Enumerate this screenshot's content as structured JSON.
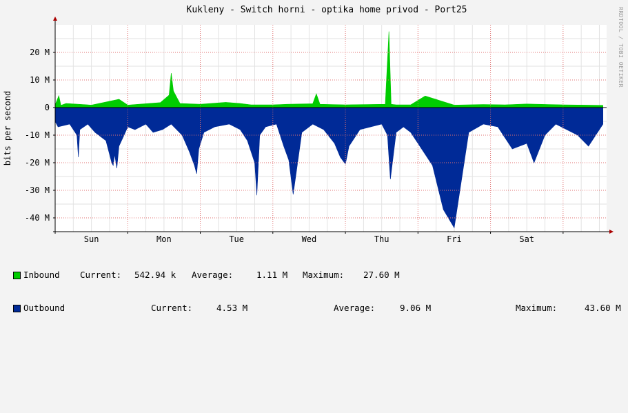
{
  "chart_data": {
    "type": "area",
    "title": "Kukleny - Switch horni - optika home privod - Port25",
    "ylabel": "bits per second",
    "y_unit": "bits per second",
    "ylim": [
      -45000000,
      30000000
    ],
    "yticks": [
      {
        "value": 20000000,
        "label": "20 M"
      },
      {
        "value": 10000000,
        "label": "10 M"
      },
      {
        "value": 0,
        "label": "0"
      },
      {
        "value": -10000000,
        "label": "-10 M"
      },
      {
        "value": -20000000,
        "label": "-20 M"
      },
      {
        "value": -30000000,
        "label": "-30 M"
      },
      {
        "value": -40000000,
        "label": "-40 M"
      }
    ],
    "xlim": [
      0,
      7.6
    ],
    "xticks": [
      {
        "value": 0.5,
        "label": "Sun"
      },
      {
        "value": 1.5,
        "label": "Mon"
      },
      {
        "value": 2.5,
        "label": "Tue"
      },
      {
        "value": 3.5,
        "label": "Wed"
      },
      {
        "value": 4.5,
        "label": "Thu"
      },
      {
        "value": 5.5,
        "label": "Fri"
      },
      {
        "value": 6.5,
        "label": "Sat"
      }
    ],
    "day_boundaries": [
      0,
      1,
      2,
      3,
      4,
      5,
      6,
      7
    ],
    "grid": true,
    "watermark": "RRDTOOL / TOBI OETIKER",
    "series": [
      {
        "name": "Inbound",
        "color": "#00cc00",
        "direction": "positive",
        "x": [
          0,
          0.05,
          0.08,
          0.15,
          0.5,
          0.88,
          1.0,
          1.2,
          1.45,
          1.57,
          1.6,
          1.63,
          1.67,
          1.72,
          2.0,
          2.35,
          2.55,
          2.7,
          3.0,
          3.2,
          3.55,
          3.6,
          3.65,
          4.0,
          4.3,
          4.55,
          4.6,
          4.63,
          4.7,
          4.9,
          5.1,
          5.5,
          5.9,
          6.2,
          6.5,
          6.8,
          7.0,
          7.3,
          7.55
        ],
        "values": [
          1000000,
          4300000,
          800000,
          1500000,
          900000,
          3000000,
          900000,
          1300000,
          1800000,
          4500000,
          12500000,
          6000000,
          4000000,
          1500000,
          1200000,
          1900000,
          1500000,
          1000000,
          1000000,
          1200000,
          1400000,
          5000000,
          1200000,
          1000000,
          1100000,
          1200000,
          27600000,
          1200000,
          1000000,
          1000000,
          4200000,
          900000,
          1100000,
          1000000,
          1300000,
          1100000,
          1000000,
          900000,
          800000
        ]
      },
      {
        "name": "Outbound",
        "color": "#002a97",
        "direction": "negative",
        "x": [
          0,
          0.04,
          0.2,
          0.3,
          0.32,
          0.34,
          0.45,
          0.55,
          0.7,
          0.78,
          0.8,
          0.82,
          0.85,
          0.88,
          0.95,
          1.0,
          1.1,
          1.25,
          1.35,
          1.48,
          1.6,
          1.75,
          1.85,
          1.92,
          1.95,
          1.98,
          2.05,
          2.2,
          2.4,
          2.55,
          2.65,
          2.75,
          2.78,
          2.82,
          2.9,
          3.05,
          3.15,
          3.22,
          3.28,
          3.4,
          3.55,
          3.7,
          3.85,
          3.93,
          4.0,
          4.05,
          4.1,
          4.2,
          4.35,
          4.5,
          4.58,
          4.62,
          4.7,
          4.8,
          4.9,
          5.05,
          5.2,
          5.35,
          5.5,
          5.7,
          5.9,
          6.1,
          6.3,
          6.5,
          6.6,
          6.75,
          6.9,
          7.05,
          7.2,
          7.35,
          7.55
        ],
        "values": [
          -5000000,
          -7000000,
          -6000000,
          -10000000,
          -18000000,
          -8000000,
          -6000000,
          -9000000,
          -12000000,
          -20000000,
          -21000000,
          -17000000,
          -22000000,
          -14000000,
          -10000000,
          -7000000,
          -8000000,
          -6000000,
          -9000000,
          -8000000,
          -6000000,
          -10000000,
          -16000000,
          -21000000,
          -24000000,
          -15000000,
          -9000000,
          -7000000,
          -6000000,
          -8000000,
          -12000000,
          -20000000,
          -31800000,
          -10000000,
          -7000000,
          -6000000,
          -14000000,
          -19000000,
          -31500000,
          -9000000,
          -6000000,
          -8000000,
          -13000000,
          -18000000,
          -20500000,
          -14000000,
          -12000000,
          -8000000,
          -7000000,
          -6000000,
          -10000000,
          -26000000,
          -9000000,
          -7000000,
          -9000000,
          -15000000,
          -21000000,
          -37000000,
          -43600000,
          -9000000,
          -6000000,
          -7000000,
          -15000000,
          -13000000,
          -20000000,
          -10000000,
          -6000000,
          -8000000,
          -10000000,
          -14000000,
          -6000000
        ]
      }
    ]
  },
  "legend": {
    "inbound": {
      "label": "Inbound",
      "color": "#00cc00",
      "current_label": "Current:",
      "current": "542.94 k",
      "average_label": "Average:",
      "average": "1.11 M",
      "maximum_label": "Maximum:",
      "maximum": "27.60 M"
    },
    "outbound": {
      "label": "Outbound",
      "color": "#002a97",
      "current_label": "Current:",
      "current": "4.53 M",
      "average_label": "Average:",
      "average": "9.06 M",
      "maximum_label": "Maximum:",
      "maximum": "43.60 M"
    }
  }
}
